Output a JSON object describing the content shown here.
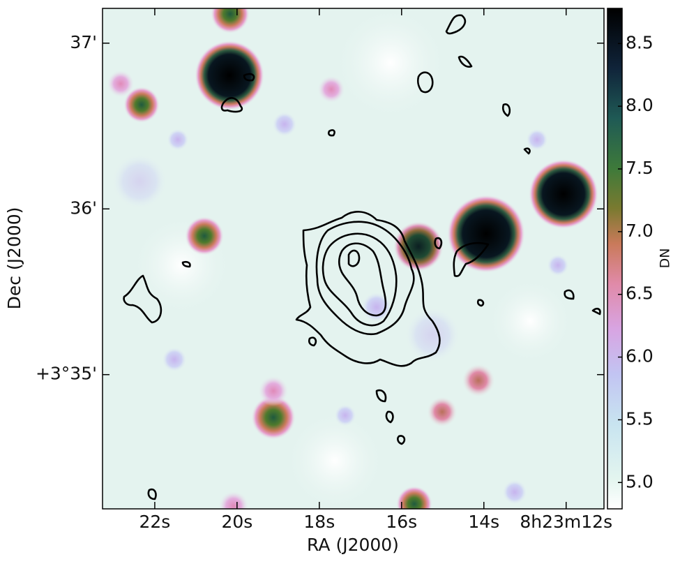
{
  "chart_data": {
    "type": "image",
    "xlabel": "RA (J2000)",
    "ylabel": "Dec (J2000)",
    "xlim": [
      23.27,
      11.08
    ],
    "xticks": [
      {
        "value": 22,
        "label": "22s"
      },
      {
        "value": 20,
        "label": "20s"
      },
      {
        "value": 18,
        "label": "18s"
      },
      {
        "value": 16,
        "label": "16s"
      },
      {
        "value": 14,
        "label": "14s"
      },
      {
        "value": 12,
        "label": "8h23m12s"
      }
    ],
    "ylim": [
      34.19,
      37.21
    ],
    "yticks": [
      {
        "value": 35,
        "label": "+3°35'"
      },
      {
        "value": 36,
        "label": "36'"
      },
      {
        "value": 37,
        "label": "37'"
      }
    ],
    "colorbar": {
      "label": "DN",
      "lim": [
        4.79,
        8.78
      ],
      "ticks": [
        {
          "value": 5,
          "label": "5.0"
        },
        5.5,
        {
          "value": 6,
          "label": "6.0"
        },
        6.5,
        {
          "value": 7,
          "label": "7.0"
        },
        7.5,
        {
          "value": 8,
          "label": "8.0"
        },
        8.5
      ]
    }
  }
}
